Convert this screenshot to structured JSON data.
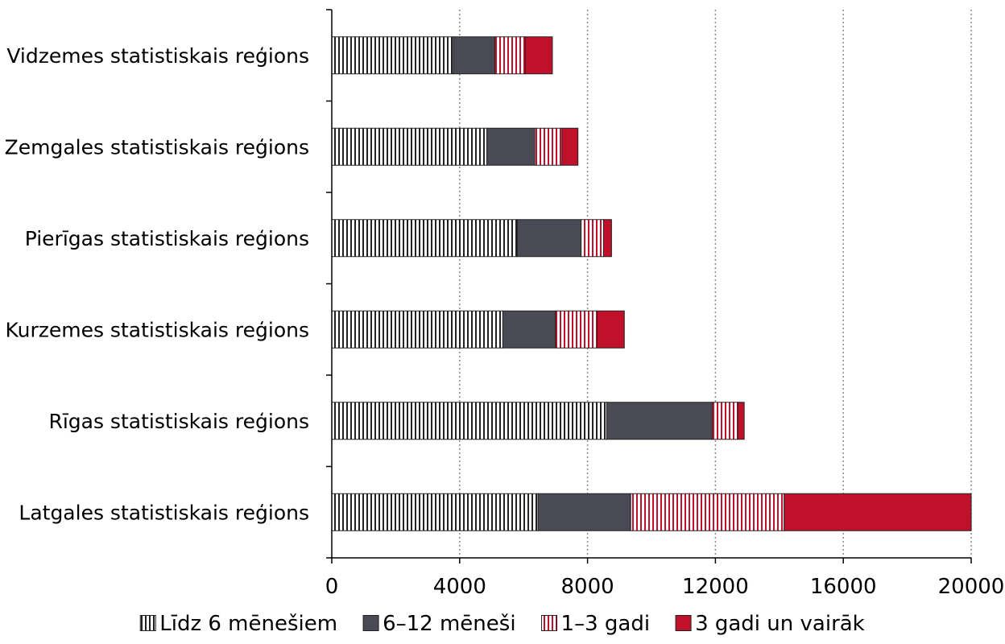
{
  "chart_data": {
    "type": "bar",
    "orientation": "horizontal",
    "stacked": true,
    "categories": [
      "Vidzemes statistiskais reģions",
      "Zemgales statistiskais reģions",
      "Pierīgas statistiskais reģions",
      "Kurzemes statistiskais reģions",
      "Rīgas statistiskais reģions",
      "Latgales statistiskais reģions"
    ],
    "series": [
      {
        "name": "Līdz 6 mēnešiem",
        "values": [
          3800,
          4850,
          5800,
          5350,
          8600,
          6450
        ],
        "color": "#ffffff",
        "pattern": "vertical-stripes-black"
      },
      {
        "name": "6–12 mēneši",
        "values": [
          1300,
          1500,
          2000,
          1650,
          3300,
          2900
        ],
        "color": "#4a4a55",
        "pattern": "solid"
      },
      {
        "name": "1–3 gadi",
        "values": [
          950,
          850,
          700,
          1300,
          800,
          4800
        ],
        "color": "#ffffff",
        "pattern": "vertical-stripes-red"
      },
      {
        "name": "3 gadi un vairāk",
        "values": [
          850,
          500,
          250,
          850,
          200,
          5850
        ],
        "color": "#c0102a",
        "pattern": "solid"
      }
    ],
    "xlim": [
      0,
      20000
    ],
    "xticks": [
      "0",
      "4000",
      "8000",
      "12000",
      "16000",
      "20000"
    ],
    "grid": "vertical dotted",
    "legend_position": "bottom",
    "title": "",
    "xlabel": "",
    "ylabel": ""
  }
}
